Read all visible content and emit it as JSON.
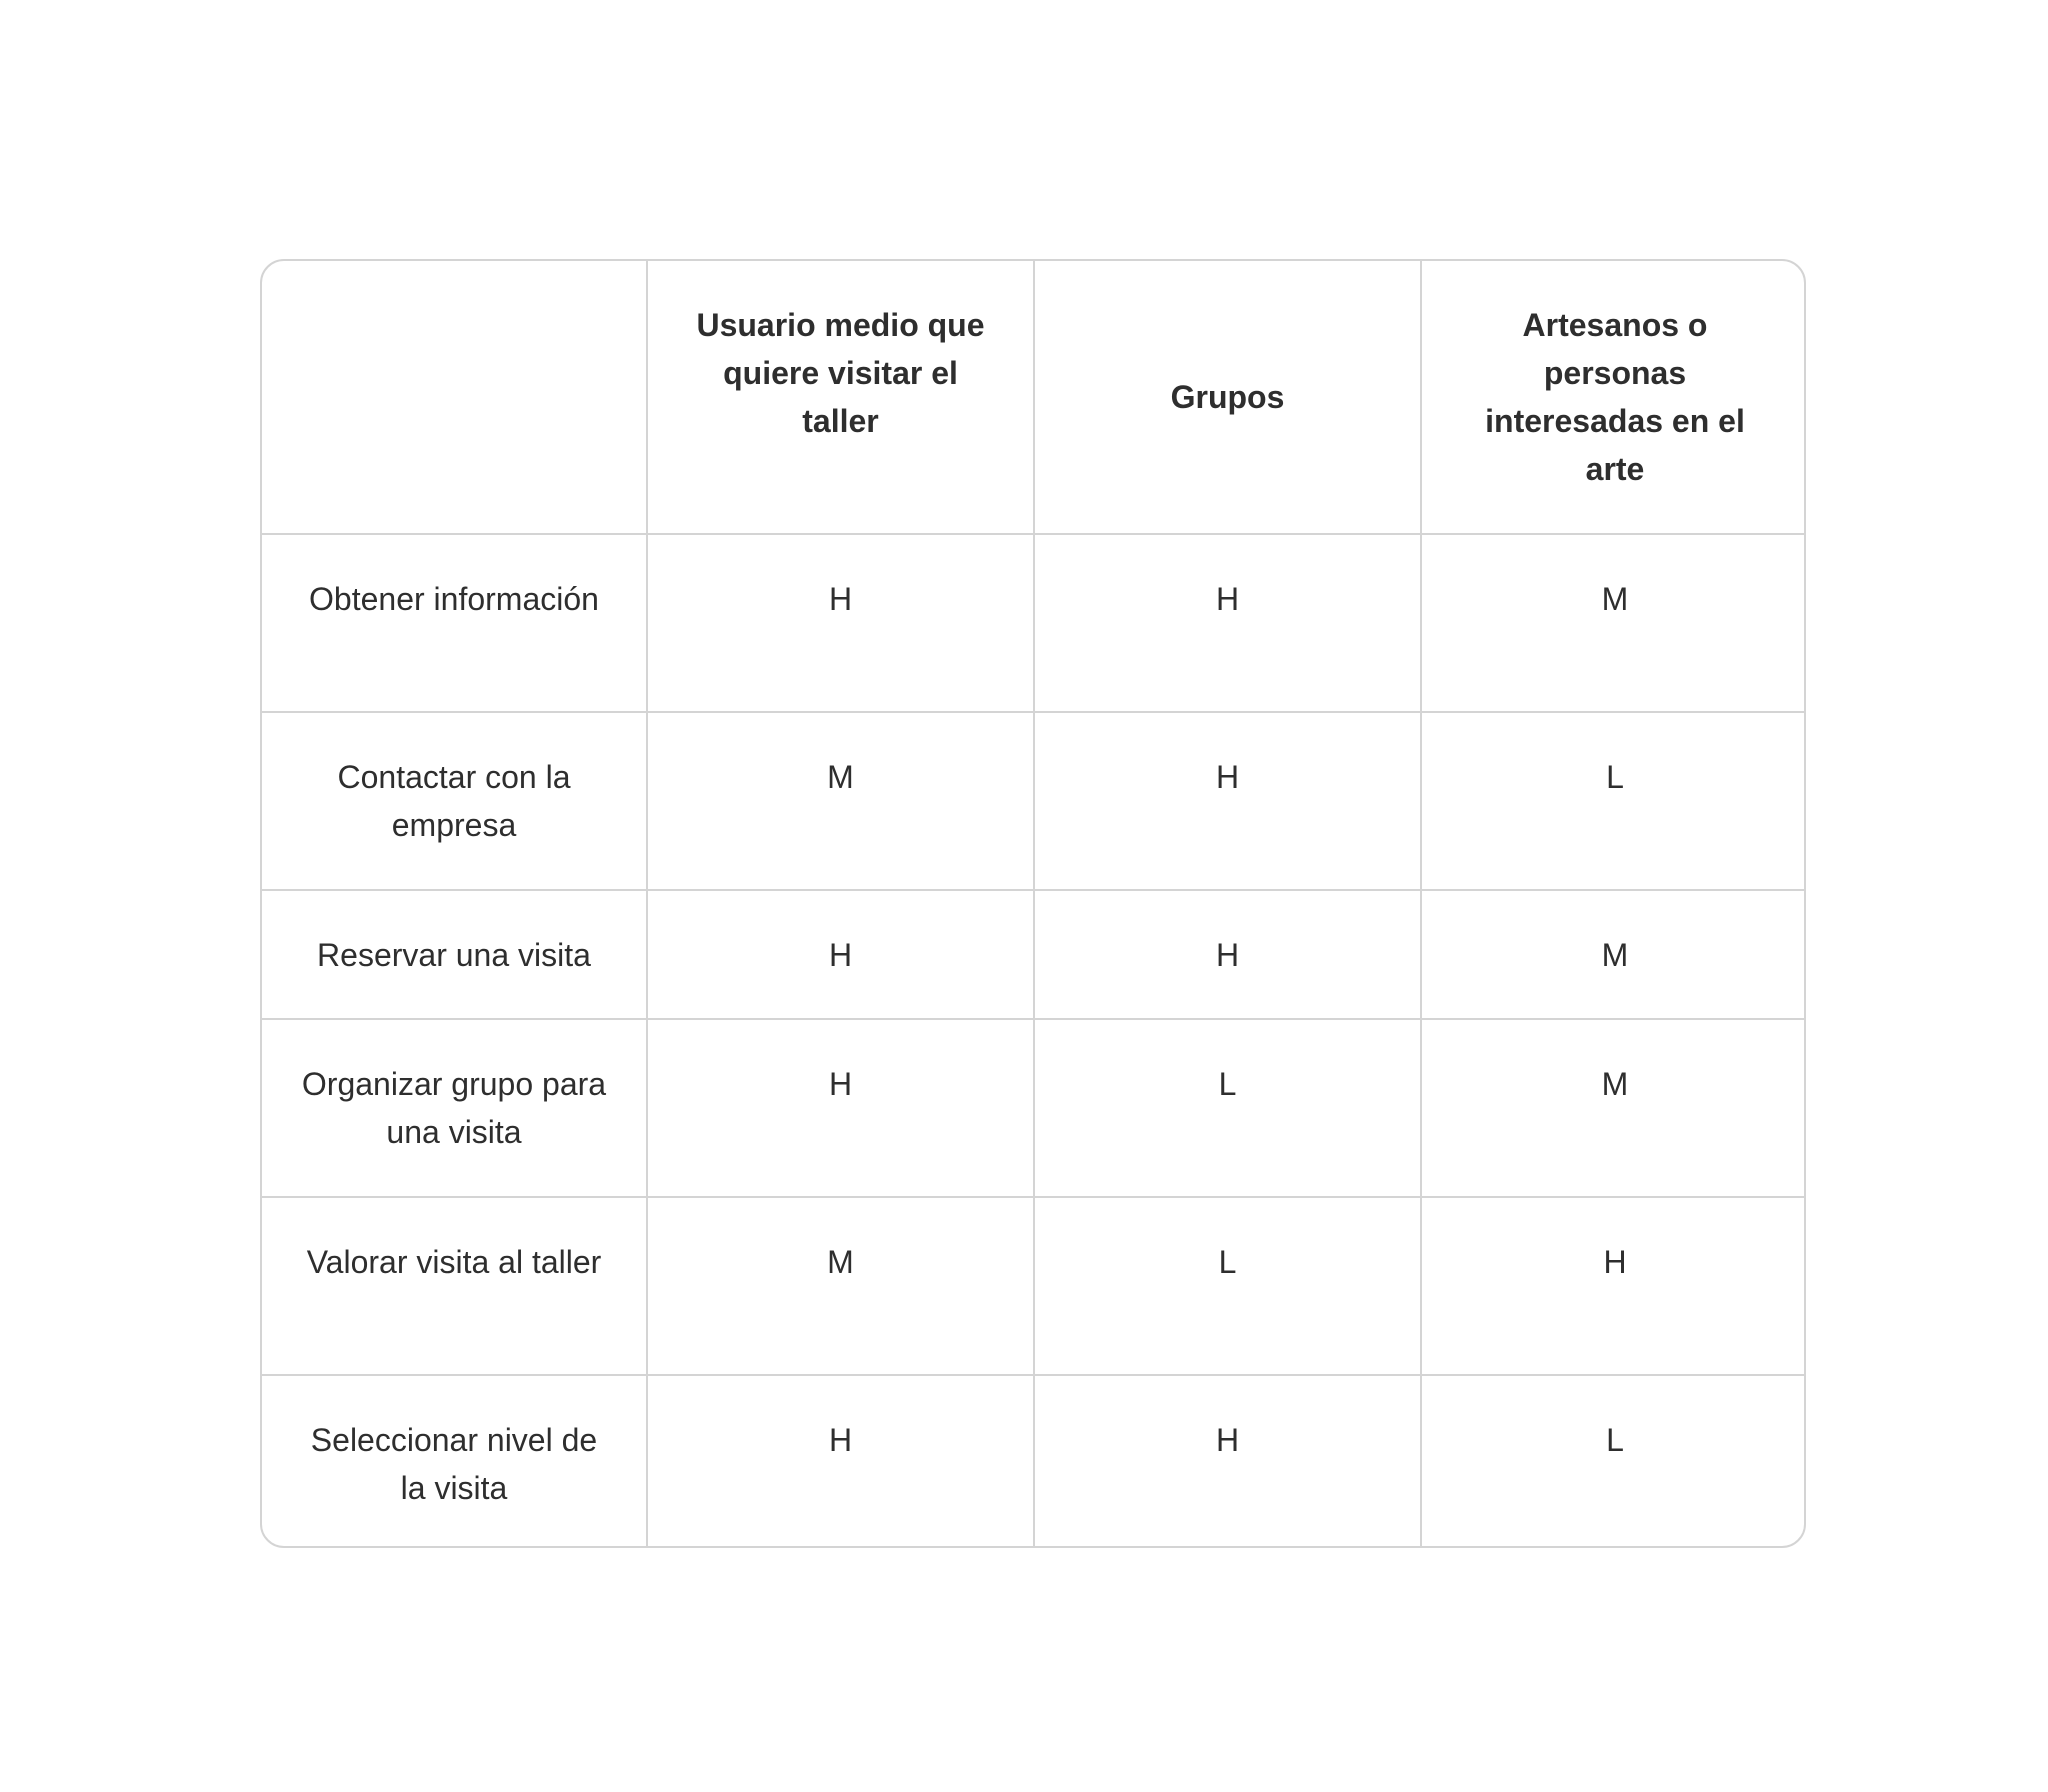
{
  "table": {
    "headers": [
      "",
      "Usuario medio que quiere visitar el taller",
      "Grupos",
      "Artesanos o personas interesadas en el arte"
    ],
    "rows": [
      {
        "task": "Obtener información",
        "values": [
          "H",
          "H",
          "M"
        ]
      },
      {
        "task": "Contactar con la empresa",
        "values": [
          "M",
          "H",
          "L"
        ]
      },
      {
        "task": "Reservar una visita",
        "values": [
          "H",
          "H",
          "M"
        ]
      },
      {
        "task": "Organizar grupo para una visita",
        "values": [
          "H",
          "L",
          "M"
        ]
      },
      {
        "task": "Valorar visita al taller",
        "values": [
          "M",
          "L",
          "H"
        ]
      },
      {
        "task": "Seleccionar nivel de la visita",
        "values": [
          "H",
          "H",
          "L"
        ]
      }
    ]
  }
}
